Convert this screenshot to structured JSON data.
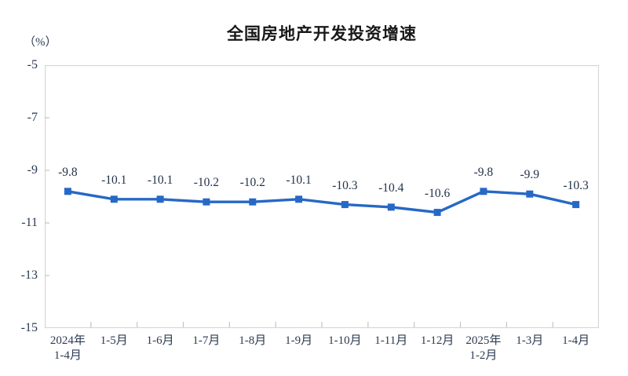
{
  "page": {
    "background_color": "#ffffff"
  },
  "chart_data": {
    "type": "line",
    "title": "全国房地产开发投资增速",
    "unit_label": "（%）",
    "categories": [
      "2024年\n1-4月",
      "1-5月",
      "1-6月",
      "1-7月",
      "1-8月",
      "1-9月",
      "1-10月",
      "1-11月",
      "1-12月",
      "2025年\n1-2月",
      "1-3月",
      "1-4月"
    ],
    "values": [
      -9.8,
      -10.1,
      -10.1,
      -10.2,
      -10.2,
      -10.1,
      -10.3,
      -10.4,
      -10.6,
      -9.8,
      -9.9,
      -10.3
    ],
    "data_labels": [
      "-9.8",
      "-10.1",
      "-10.1",
      "-10.2",
      "-10.2",
      "-10.1",
      "-10.3",
      "-10.4",
      "-10.6",
      "-9.8",
      "-9.9",
      "-10.3"
    ],
    "y_ticks": [
      "-5",
      "-7",
      "-9",
      "-11",
      "-13",
      "-15"
    ],
    "ylim": [
      -15,
      -5
    ],
    "xlabel": "",
    "ylabel": "（%）",
    "grid": false,
    "legend": "none",
    "marker": "square",
    "series_name": "全国房地产开发投资增速",
    "colors": {
      "line": "#2668c6",
      "marker": "#2668c6",
      "plot_border": "#d6d6d6",
      "tick": "#c4c4c4",
      "axis_text": "#2b3a52",
      "data_label_text": "#23324a",
      "title_text": "#181818"
    }
  }
}
